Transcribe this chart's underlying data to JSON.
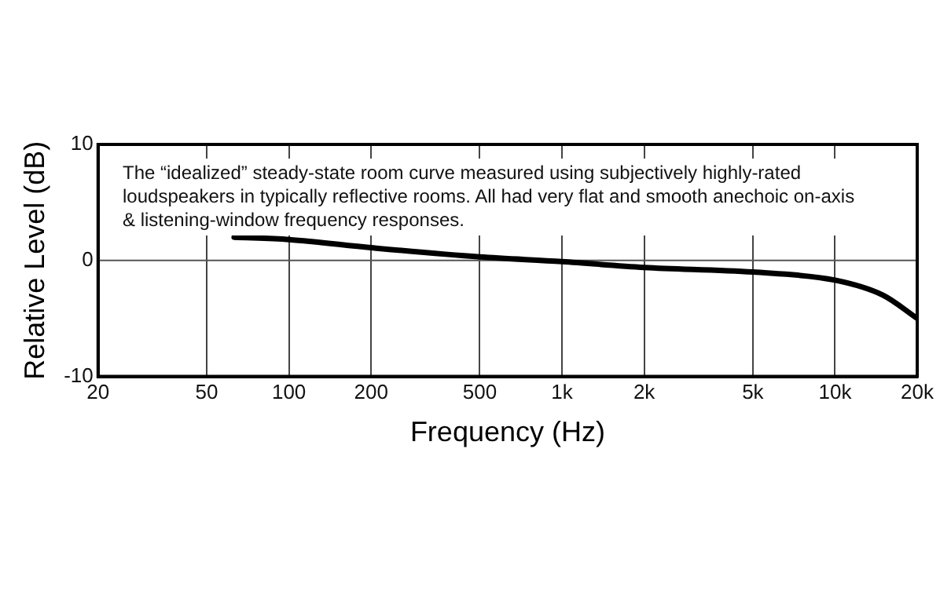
{
  "chart_data": {
    "type": "line",
    "xlabel": "Frequency (Hz)",
    "ylabel": "Relative Level (dB)",
    "annotations": [
      "The “idealized” steady-state room curve measured using subjectively highly-rated loudspeakers in typically reflective rooms. All had very flat and smooth anechoic on-axis & listening-window frequency responses."
    ],
    "series": [
      {
        "color": "#000000",
        "x": [
          63,
          100,
          200,
          500,
          1000,
          2000,
          5000,
          10000,
          15000,
          20000
        ],
        "values": [
          2.0,
          1.8,
          1.1,
          0.3,
          -0.1,
          -0.6,
          -1.0,
          -1.7,
          -3.0,
          -5.0
        ]
      }
    ],
    "log": "x",
    "xlim": [
      20,
      20000
    ],
    "xticks": [
      20,
      50,
      100,
      200,
      500,
      {
        "value": 1000,
        "label": "1k"
      },
      {
        "value": 2000,
        "label": "2k"
      },
      {
        "value": 5000,
        "label": "5k"
      },
      {
        "value": 10000,
        "label": "10k"
      },
      {
        "value": 20000,
        "label": "20k"
      }
    ],
    "ylim": [
      -10,
      10
    ],
    "yticks": [
      -10,
      0,
      10
    ],
    "grid": "x",
    "ref_lines": [
      {
        "axis": "y",
        "value": 0
      }
    ],
    "marker": "none",
    "line_style": "solid",
    "legend": false
  }
}
